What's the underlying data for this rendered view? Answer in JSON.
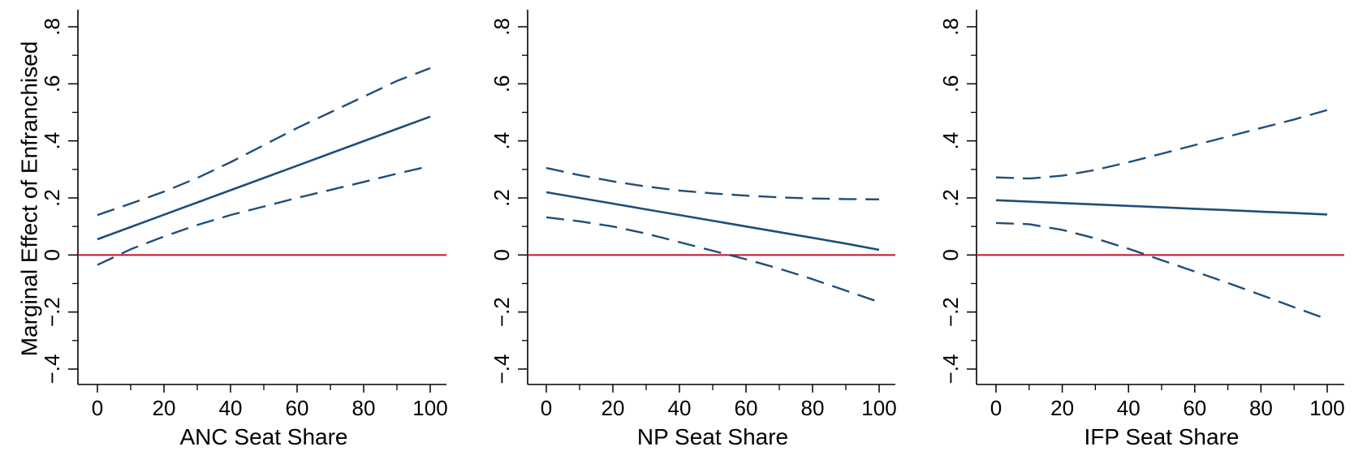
{
  "figure": {
    "ylabel": "Marginal Effect of Enfranchised",
    "colors": {
      "estimate": "#1f4e79",
      "ci": "#1f4e79",
      "zero_line": "#c8102e",
      "axis": "#000000"
    }
  },
  "chart_data": [
    {
      "type": "line",
      "xlabel": "ANC Seat Share",
      "ylabel": "Marginal Effect of Enfranchised",
      "xlim": [
        0,
        100
      ],
      "ylim": [
        -0.4,
        0.8
      ],
      "xticks": [
        0,
        20,
        40,
        60,
        80,
        100
      ],
      "xtick_labels": [
        "0",
        "20",
        "40",
        "60",
        "80",
        "100"
      ],
      "yticks": [
        -0.4,
        -0.2,
        0,
        0.2,
        0.4,
        0.6,
        0.8
      ],
      "ytick_labels": [
        "-.4",
        "-.2",
        "0",
        ".2",
        ".4",
        ".6",
        ".8"
      ],
      "grid": false,
      "reference_line": 0,
      "x": [
        0,
        10,
        20,
        30,
        40,
        50,
        60,
        70,
        80,
        90,
        100
      ],
      "series": [
        {
          "role": "estimate",
          "values": [
            0.055,
            0.098,
            0.141,
            0.184,
            0.227,
            0.27,
            0.313,
            0.356,
            0.399,
            0.442,
            0.485
          ]
        },
        {
          "role": "upper",
          "values": [
            0.14,
            0.18,
            0.222,
            0.27,
            0.325,
            0.385,
            0.445,
            0.5,
            0.555,
            0.61,
            0.655
          ]
        },
        {
          "role": "lower",
          "values": [
            -0.035,
            0.02,
            0.065,
            0.105,
            0.14,
            0.17,
            0.2,
            0.228,
            0.256,
            0.285,
            0.312
          ]
        }
      ]
    },
    {
      "type": "line",
      "xlabel": "NP Seat Share",
      "xlim": [
        0,
        100
      ],
      "ylim": [
        -0.4,
        0.8
      ],
      "xticks": [
        0,
        20,
        40,
        60,
        80,
        100
      ],
      "xtick_labels": [
        "0",
        "20",
        "40",
        "60",
        "80",
        "100"
      ],
      "yticks": [
        -0.4,
        -0.2,
        0,
        0.2,
        0.4,
        0.6,
        0.8
      ],
      "ytick_labels": [
        "-.4",
        "-.2",
        "0",
        ".2",
        ".4",
        ".6",
        ".8"
      ],
      "grid": false,
      "reference_line": 0,
      "x": [
        0,
        10,
        20,
        30,
        40,
        50,
        60,
        70,
        80,
        90,
        100
      ],
      "series": [
        {
          "role": "estimate",
          "values": [
            0.22,
            0.2,
            0.18,
            0.16,
            0.14,
            0.12,
            0.1,
            0.08,
            0.06,
            0.04,
            0.018
          ]
        },
        {
          "role": "upper",
          "values": [
            0.305,
            0.28,
            0.258,
            0.24,
            0.226,
            0.216,
            0.208,
            0.202,
            0.198,
            0.196,
            0.195
          ]
        },
        {
          "role": "lower",
          "values": [
            0.132,
            0.118,
            0.1,
            0.075,
            0.045,
            0.015,
            -0.015,
            -0.048,
            -0.085,
            -0.125,
            -0.165
          ]
        }
      ]
    },
    {
      "type": "line",
      "xlabel": "IFP Seat Share",
      "xlim": [
        0,
        100
      ],
      "ylim": [
        -0.4,
        0.8
      ],
      "xticks": [
        0,
        20,
        40,
        60,
        80,
        100
      ],
      "xtick_labels": [
        "0",
        "20",
        "40",
        "60",
        "80",
        "100"
      ],
      "yticks": [
        -0.4,
        -0.2,
        0,
        0.2,
        0.4,
        0.6,
        0.8
      ],
      "ytick_labels": [
        "-.4",
        "-.2",
        "0",
        ".2",
        ".4",
        ".6",
        ".8"
      ],
      "grid": false,
      "reference_line": 0,
      "x": [
        0,
        10,
        20,
        30,
        40,
        50,
        60,
        70,
        80,
        90,
        100
      ],
      "series": [
        {
          "role": "estimate",
          "values": [
            0.192,
            0.187,
            0.182,
            0.177,
            0.172,
            0.167,
            0.162,
            0.157,
            0.152,
            0.147,
            0.142
          ]
        },
        {
          "role": "upper",
          "values": [
            0.272,
            0.268,
            0.278,
            0.298,
            0.325,
            0.355,
            0.385,
            0.415,
            0.445,
            0.475,
            0.508
          ]
        },
        {
          "role": "lower",
          "values": [
            0.112,
            0.108,
            0.088,
            0.058,
            0.022,
            -0.018,
            -0.058,
            -0.098,
            -0.14,
            -0.183,
            -0.225
          ]
        }
      ]
    }
  ]
}
